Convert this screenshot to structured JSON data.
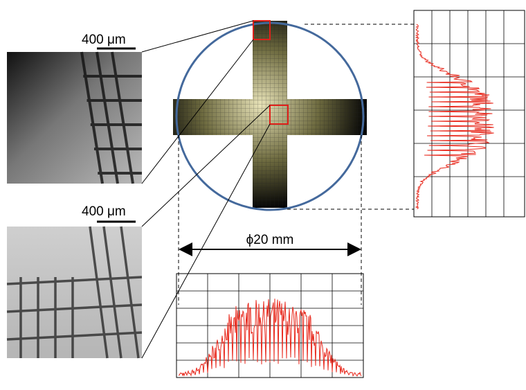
{
  "scale_bars": [
    {
      "label": "400 μm"
    },
    {
      "label": "400 μm"
    }
  ],
  "diameter_label": "ϕ20 mm"
}
